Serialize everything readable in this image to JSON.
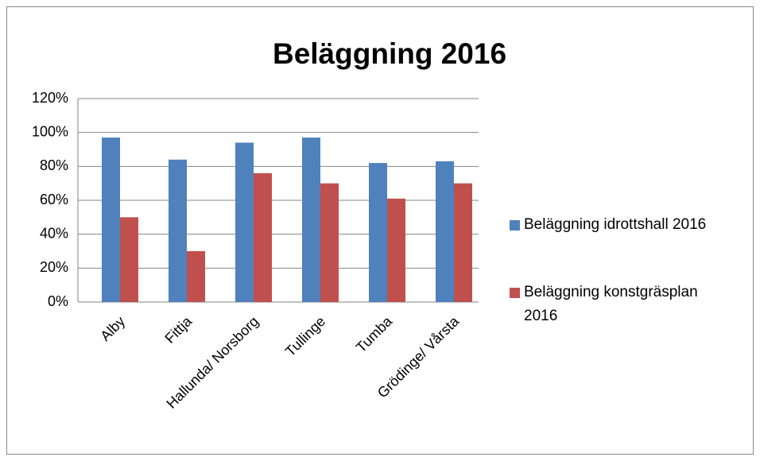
{
  "chart_data": {
    "type": "bar",
    "title": "Beläggning 2016",
    "categories": [
      "Alby",
      "Fittja",
      "Hallunda/ Norsborg",
      "Tullinge",
      "Tumba",
      "Grödinge/ Vårsta"
    ],
    "series": [
      {
        "name": "Beläggning idrottshall 2016",
        "color": "#4f81bd",
        "values": [
          97,
          84,
          94,
          97,
          82,
          83
        ]
      },
      {
        "name": "Beläggning konstgräsplan 2016",
        "color": "#c0504d",
        "values": [
          50,
          30,
          76,
          70,
          61,
          70
        ]
      }
    ],
    "ylim": [
      0,
      120
    ],
    "yticks": [
      {
        "value": 0,
        "label": "0%"
      },
      {
        "value": 20,
        "label": "20%"
      },
      {
        "value": 40,
        "label": "40%"
      },
      {
        "value": 60,
        "label": "60%"
      },
      {
        "value": 80,
        "label": "80%"
      },
      {
        "value": 100,
        "label": "100%"
      },
      {
        "value": 120,
        "label": "120%"
      }
    ],
    "grid": true,
    "legend": "right"
  }
}
